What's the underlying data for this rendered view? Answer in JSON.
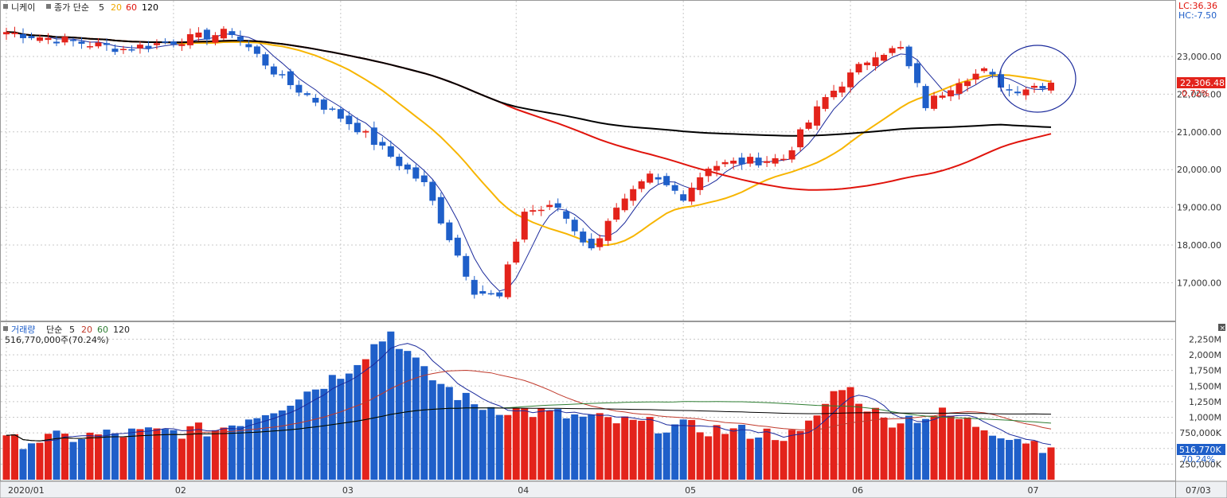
{
  "header": {
    "title": "니케이",
    "price_legend_prefix": "종가 단순",
    "ma_periods": [
      "5",
      "20",
      "60",
      "120"
    ],
    "ma_colors": [
      "#1c2b9c",
      "#f7b500",
      "#e0140c",
      "#000000"
    ],
    "lc": "LC:36.36",
    "hc": "HC:-7.50"
  },
  "price_panel": {
    "last_price": "22,306.48",
    "change_pct": "0.72%",
    "y_ticks": [
      "23,000.00",
      "22,000.00",
      "21,000.00",
      "20,000.00",
      "19,000.00",
      "18,000.00",
      "17,000.00"
    ]
  },
  "volume_panel": {
    "title": "거래량",
    "legend_prefix": "단순",
    "ma_periods": [
      "5",
      "20",
      "60",
      "120"
    ],
    "ma_colors": [
      "#1c2b9c",
      "#c0392b",
      "#2e7d32",
      "#000000"
    ],
    "last_volume_text": "516,770,000주(70.24%)",
    "last_volume": "516,770K",
    "last_pct": "70.24%",
    "y_ticks": [
      "2,250M",
      "2,000M",
      "1,750M",
      "1,500M",
      "1,250M",
      "1,000M",
      "750,000K",
      "500,000K",
      "250,000K"
    ]
  },
  "x_axis": {
    "labels": [
      "2020/01",
      "02",
      "03",
      "04",
      "05",
      "06",
      "07"
    ],
    "label_index": [
      0,
      20,
      40,
      61,
      81,
      101,
      122
    ],
    "date_box": "07/03"
  },
  "colors": {
    "up": "#e3231b",
    "down": "#1f5fc9",
    "grid": "#c8c8c8"
  },
  "chart_data": {
    "type": "candlestick",
    "title": "니케이",
    "ylim_price": [
      16200,
      23600
    ],
    "ylim_volume": [
      0,
      2400
    ],
    "volume_unit": "M",
    "n_days": 126,
    "key_points": [
      {
        "index": 0,
        "close": 23650
      },
      {
        "index": 14,
        "close": 23200
      },
      {
        "index": 27,
        "close": 23650
      },
      {
        "index": 33,
        "close": 22400
      },
      {
        "index": 42,
        "close": 21100
      },
      {
        "index": 50,
        "close": 19600
      },
      {
        "index": 56,
        "close": 16800
      },
      {
        "index": 59,
        "close": 16600
      },
      {
        "index": 62,
        "close": 18900
      },
      {
        "index": 66,
        "close": 19000
      },
      {
        "index": 70,
        "close": 17850
      },
      {
        "index": 72,
        "close": 18700
      },
      {
        "index": 77,
        "close": 19800
      },
      {
        "index": 81,
        "close": 19300
      },
      {
        "index": 84,
        "close": 20100
      },
      {
        "index": 88,
        "close": 20200
      },
      {
        "index": 93,
        "close": 20300
      },
      {
        "index": 98,
        "close": 21900
      },
      {
        "index": 104,
        "close": 23100
      },
      {
        "index": 107,
        "close": 23200
      },
      {
        "index": 110,
        "close": 21700
      },
      {
        "index": 114,
        "close": 22400
      },
      {
        "index": 117,
        "close": 22600
      },
      {
        "index": 120,
        "close": 22100
      },
      {
        "index": 125,
        "close": 22306
      }
    ],
    "volume_key_points": [
      {
        "index": 0,
        "v": 600
      },
      {
        "index": 12,
        "v": 720
      },
      {
        "index": 25,
        "v": 800
      },
      {
        "index": 33,
        "v": 1200
      },
      {
        "index": 40,
        "v": 1700
      },
      {
        "index": 46,
        "v": 2370
      },
      {
        "index": 50,
        "v": 1700
      },
      {
        "index": 56,
        "v": 1200
      },
      {
        "index": 65,
        "v": 1050
      },
      {
        "index": 75,
        "v": 900
      },
      {
        "index": 85,
        "v": 800
      },
      {
        "index": 95,
        "v": 700
      },
      {
        "index": 100,
        "v": 1540
      },
      {
        "index": 105,
        "v": 950
      },
      {
        "index": 112,
        "v": 1050
      },
      {
        "index": 120,
        "v": 720
      },
      {
        "index": 125,
        "v": 517
      }
    ]
  }
}
